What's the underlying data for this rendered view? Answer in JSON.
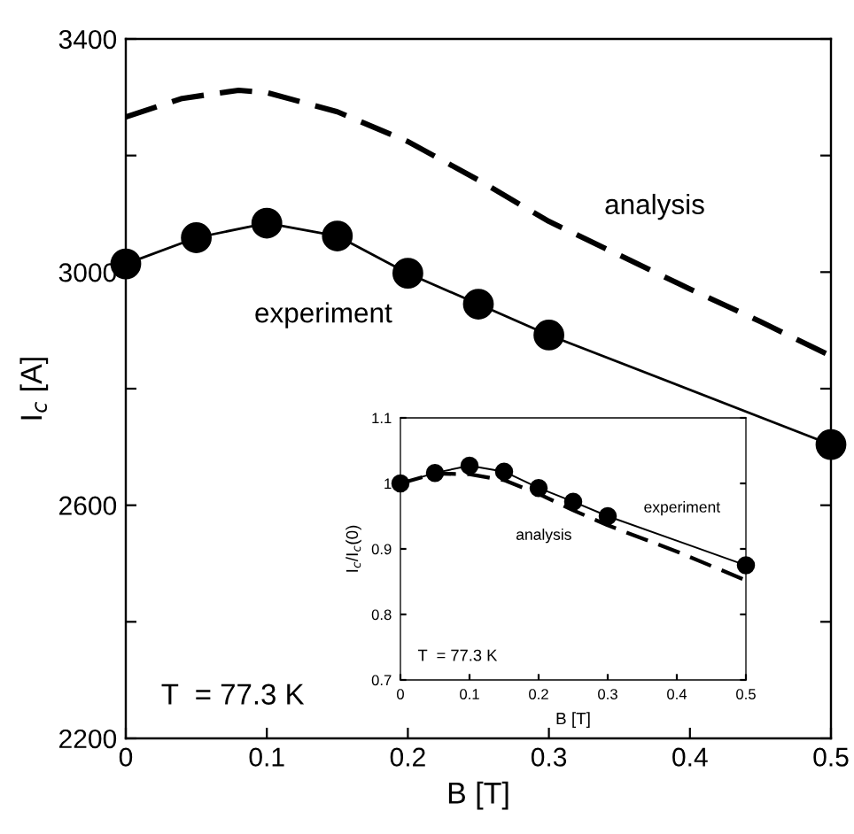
{
  "chart_data": [
    {
      "type": "line",
      "xlabel": "B [T]",
      "ylabel": "I$_{c}$ [A]",
      "series": [
        {
          "color": "#000000",
          "line_style": "solid",
          "marker": "circle",
          "x": [
            0,
            0.05,
            0.1,
            0.15,
            0.2,
            0.25,
            0.3,
            0.5
          ],
          "values": [
            3014,
            3059,
            3084,
            3062,
            2998,
            2945,
            2892,
            2704
          ]
        },
        {
          "color": "#000000",
          "line_style": "dashed",
          "marker": "none",
          "x": [
            0,
            0.04,
            0.08,
            0.1,
            0.15,
            0.2,
            0.25,
            0.3,
            0.35,
            0.4,
            0.45,
            0.5
          ],
          "values": [
            3266,
            3298,
            3312,
            3308,
            3275,
            3224,
            3158,
            3087,
            3029,
            2971,
            2915,
            2856
          ]
        }
      ],
      "xlim": [
        0,
        0.5
      ],
      "ylim": [
        2200,
        3400
      ],
      "xticks": [
        0,
        0.1,
        0.2,
        0.3,
        0.4,
        0.5
      ],
      "yticks": [
        2200,
        {
          "value": 2400,
          "label": null
        },
        2600,
        {
          "value": 2800,
          "label": null
        },
        3000,
        {
          "value": 3200,
          "label": null
        },
        3400
      ],
      "grid": false,
      "legend": false,
      "annotations": [
        "analysis",
        "experiment",
        "T  = 77.3 K"
      ]
    },
    {
      "type": "line",
      "xlabel": "B [T]",
      "ylabel": "I$_{c}$/I$_{c}$(0)",
      "series": [
        {
          "color": "#000000",
          "line_style": "solid",
          "marker": "circle",
          "x": [
            0,
            0.05,
            0.1,
            0.15,
            0.2,
            0.25,
            0.3,
            0.5
          ],
          "values": [
            1.0,
            1.016,
            1.027,
            1.018,
            0.993,
            0.972,
            0.95,
            0.875
          ]
        },
        {
          "color": "#000000",
          "line_style": "dashed",
          "marker": "none",
          "x": [
            0,
            0.05,
            0.1,
            0.15,
            0.2,
            0.25,
            0.3,
            0.4,
            0.5
          ],
          "values": [
            1.0,
            1.015,
            1.014,
            1.005,
            0.984,
            0.959,
            0.936,
            0.896,
            0.852
          ]
        }
      ],
      "xlim": [
        0,
        0.5
      ],
      "ylim": [
        0.7,
        1.1
      ],
      "xticks": [
        0,
        0.1,
        0.2,
        0.3,
        0.4,
        0.5
      ],
      "yticks": [
        0.7,
        0.8,
        0.9,
        1,
        1.1
      ],
      "grid": false,
      "legend": false,
      "annotations": [
        "experiment",
        "analysis",
        "T  = 77.3 K"
      ]
    }
  ]
}
